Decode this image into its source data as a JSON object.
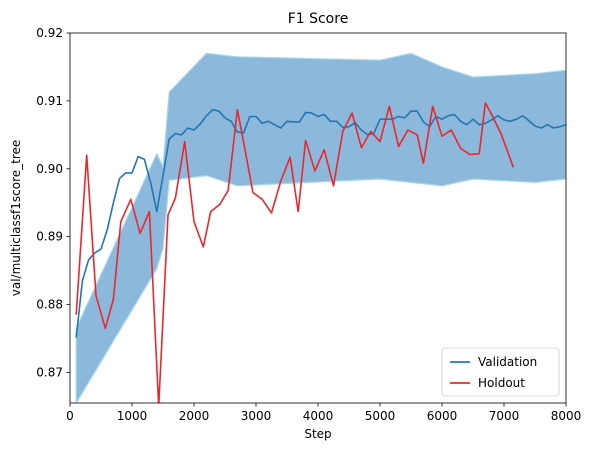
{
  "chart_data": {
    "type": "line",
    "title": "F1 Score",
    "xlabel": "Step",
    "ylabel": "val/multiclassf1score_tree",
    "xlim": [
      0,
      8000
    ],
    "ylim": [
      0.8655,
      0.92
    ],
    "xticks": [
      0,
      1000,
      2000,
      3000,
      4000,
      5000,
      6000,
      7000,
      8000
    ],
    "xtick_labels": [
      "0",
      "1000",
      "2000",
      "3000",
      "4000",
      "5000",
      "6000",
      "7000",
      "8000"
    ],
    "yticks": [
      0.87,
      0.88,
      0.89,
      0.9,
      0.91,
      0.92
    ],
    "ytick_labels": [
      "0.87",
      "0.88",
      "0.89",
      "0.90",
      "0.91",
      "0.92"
    ],
    "grid": false,
    "legend_position": "lower-right",
    "band": {
      "color": "#6fa8d2",
      "outline_color": "#a6d7e8",
      "x": [
        100,
        1400,
        1500,
        1600,
        2200,
        2700,
        5000,
        5500,
        6000,
        6500,
        7500,
        8000
      ],
      "upper": [
        0.8765,
        0.9022,
        0.9003,
        0.9113,
        0.917,
        0.9165,
        0.916,
        0.917,
        0.915,
        0.9135,
        0.914,
        0.9145
      ],
      "lower": [
        0.8655,
        0.8853,
        0.8883,
        0.8983,
        0.899,
        0.8975,
        0.8985,
        0.898,
        0.8975,
        0.8985,
        0.898,
        0.8985
      ]
    },
    "series": [
      {
        "name": "Validation",
        "color": "#1f77b4",
        "x": [
          100,
          200,
          300,
          400,
          500,
          600,
          700,
          800,
          900,
          1000,
          1100,
          1200,
          1300,
          1400,
          1500,
          1600,
          1700,
          1800,
          1900,
          2000,
          2100,
          2200,
          2300,
          2400,
          2500,
          2600,
          2700,
          2800,
          2900,
          3000,
          3100,
          3200,
          3300,
          3400,
          3500,
          3600,
          3700,
          3800,
          3900,
          4000,
          4100,
          4200,
          4300,
          4400,
          4500,
          4600,
          4700,
          4800,
          4900,
          5000,
          5100,
          5200,
          5300,
          5400,
          5500,
          5600,
          5700,
          5800,
          5900,
          6000,
          6100,
          6200,
          6300,
          6400,
          6500,
          6600,
          6700,
          6800,
          6900,
          7000,
          7100,
          7200,
          7300,
          7400,
          7500,
          7600,
          7700,
          7800,
          7900,
          8000
        ],
        "values": [
          0.8751,
          0.8835,
          0.8866,
          0.8876,
          0.8882,
          0.891,
          0.895,
          0.8986,
          0.8994,
          0.8994,
          0.9018,
          0.9014,
          0.898,
          0.8937,
          0.899,
          0.9044,
          0.9052,
          0.905,
          0.906,
          0.9057,
          0.9066,
          0.9078,
          0.9087,
          0.9085,
          0.9075,
          0.907,
          0.9054,
          0.9053,
          0.9077,
          0.9077,
          0.9067,
          0.907,
          0.9065,
          0.906,
          0.907,
          0.9069,
          0.9069,
          0.9083,
          0.9082,
          0.9077,
          0.908,
          0.907,
          0.907,
          0.9061,
          0.9062,
          0.9068,
          0.9057,
          0.905,
          0.9052,
          0.9073,
          0.9073,
          0.9073,
          0.9077,
          0.9075,
          0.9085,
          0.9085,
          0.9069,
          0.9062,
          0.9077,
          0.9073,
          0.9078,
          0.908,
          0.907,
          0.9065,
          0.9073,
          0.9065,
          0.9067,
          0.9072,
          0.9078,
          0.9072,
          0.907,
          0.9073,
          0.9078,
          0.9071,
          0.9063,
          0.906,
          0.9065,
          0.906,
          0.9062,
          0.9065
        ]
      },
      {
        "name": "Holdout",
        "color": "#e8282d",
        "x": [
          100,
          270,
          420,
          570,
          700,
          820,
          980,
          1130,
          1280,
          1430,
          1580,
          1700,
          1850,
          2000,
          2150,
          2270,
          2420,
          2550,
          2700,
          2820,
          2950,
          3100,
          3250,
          3400,
          3550,
          3680,
          3800,
          3950,
          4100,
          4250,
          4400,
          4550,
          4700,
          4850,
          5000,
          5150,
          5300,
          5450,
          5600,
          5700,
          5850,
          6000,
          6150,
          6300,
          6450,
          6600,
          6700,
          6800,
          6950,
          7100,
          7150
        ],
        "values": [
          0.8785,
          0.902,
          0.8813,
          0.8765,
          0.8808,
          0.8922,
          0.8955,
          0.8905,
          0.8937,
          0.865,
          0.8932,
          0.8957,
          0.904,
          0.8922,
          0.8885,
          0.8937,
          0.8948,
          0.8968,
          0.9087,
          0.903,
          0.8965,
          0.8955,
          0.8935,
          0.8982,
          0.9017,
          0.8937,
          0.9042,
          0.8997,
          0.9028,
          0.8975,
          0.9055,
          0.9082,
          0.9031,
          0.9055,
          0.904,
          0.9092,
          0.9033,
          0.9057,
          0.905,
          0.9008,
          0.9092,
          0.9048,
          0.9057,
          0.903,
          0.9021,
          0.9022,
          0.9097,
          0.908,
          0.9052,
          0.9015,
          0.9002
        ]
      }
    ]
  }
}
